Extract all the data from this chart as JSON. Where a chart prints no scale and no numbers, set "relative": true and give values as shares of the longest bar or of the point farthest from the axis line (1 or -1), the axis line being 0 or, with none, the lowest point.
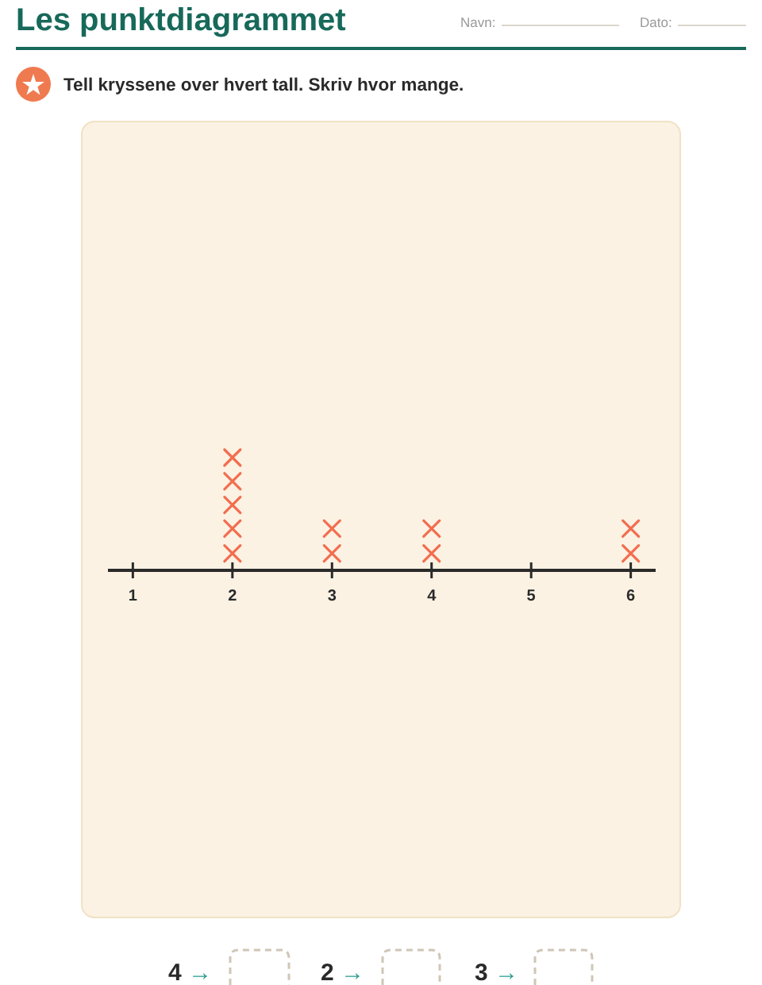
{
  "chart_data": {
    "type": "scatter",
    "title": "Les punktdiagrammet",
    "subtitle": "Tell kryssene over hvert tall. Skriv hvor mange.",
    "annotations": [
      "Navn:",
      "Dato:",
      "4 →",
      "2 →",
      "3 →"
    ],
    "x": [
      2,
      2,
      2,
      2,
      2,
      3,
      3,
      4,
      4,
      6,
      6
    ],
    "series": [
      {
        "color": "#f26d4f",
        "values": [
          0.15,
          0.37,
          0.58,
          0.79,
          1,
          0.15,
          0.37,
          0.15,
          0.37,
          0.15,
          0.37
        ]
      }
    ],
    "relative": true,
    "xlim": [
      0.75,
      6.25
    ],
    "xticks": [
      1,
      2,
      3,
      4,
      5,
      6
    ],
    "tick_labels": "x",
    "marker": "cross"
  }
}
